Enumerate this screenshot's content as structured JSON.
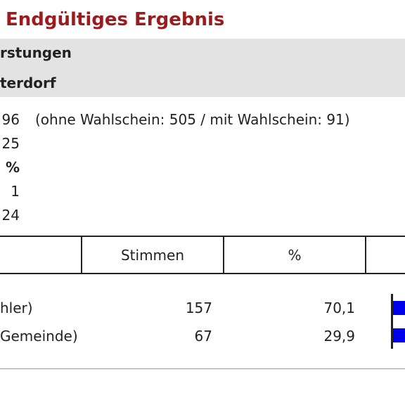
{
  "header": {
    "title": "Endgültiges Ergebnis",
    "region": "rstungen",
    "district": "terdorf"
  },
  "stats": [
    {
      "value": "96",
      "note": "(ohne Wahlschein: 505 / mit Wahlschein: 91)"
    },
    {
      "value": "25"
    },
    {
      "value": "%"
    },
    {
      "value": "1"
    },
    {
      "value": "24"
    }
  ],
  "table": {
    "header": [
      "Stimmen",
      "%"
    ],
    "rows": [
      [
        "hler)",
        "157",
        "70,1"
      ],
      [
        "Gemeinde)",
        "67",
        "29,9"
      ]
    ]
  }
}
